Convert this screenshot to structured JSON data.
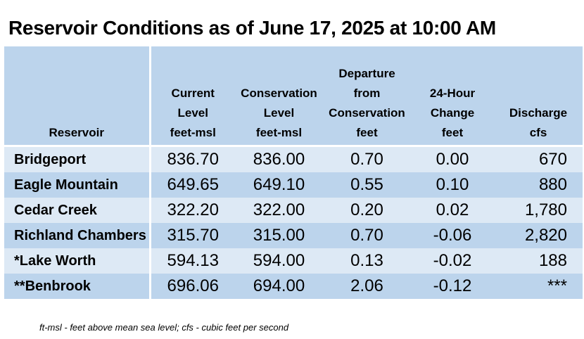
{
  "title": "Reservoir Conditions as of June 17, 2025 at 10:00 AM",
  "columns": [
    {
      "lines": [
        "Reservoir"
      ]
    },
    {
      "lines": [
        "Current",
        "Level",
        "feet-msl"
      ]
    },
    {
      "lines": [
        "Conservation",
        "Level",
        "feet-msl"
      ]
    },
    {
      "lines": [
        "Departure",
        "from",
        "Conservation",
        "feet"
      ]
    },
    {
      "lines": [
        "24-Hour",
        "Change",
        "feet"
      ]
    },
    {
      "lines": [
        "Discharge",
        "cfs"
      ]
    }
  ],
  "rows": [
    {
      "name": "Bridgeport",
      "current": "836.70",
      "conservation": "836.00",
      "departure": "0.70",
      "change": "0.00",
      "discharge": "670"
    },
    {
      "name": "Eagle Mountain",
      "current": "649.65",
      "conservation": "649.10",
      "departure": "0.55",
      "change": "0.10",
      "discharge": "880"
    },
    {
      "name": "Cedar Creek",
      "current": "322.20",
      "conservation": "322.00",
      "departure": "0.20",
      "change": "0.02",
      "discharge": "1,780"
    },
    {
      "name": "Richland Chambers",
      "current": "315.70",
      "conservation": "315.00",
      "departure": "0.70",
      "change": "-0.06",
      "discharge": "2,820"
    },
    {
      "name": "*Lake Worth",
      "current": "594.13",
      "conservation": "594.00",
      "departure": "0.13",
      "change": "-0.02",
      "discharge": "188"
    },
    {
      "name": "**Benbrook",
      "current": "696.06",
      "conservation": "694.00",
      "departure": "2.06",
      "change": "-0.12",
      "discharge": "***"
    }
  ],
  "footnote": "ft-msl - feet above mean sea level; cfs - cubic feet per second"
}
